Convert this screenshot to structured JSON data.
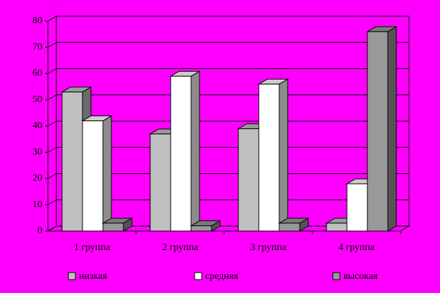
{
  "chart_data": {
    "type": "bar",
    "categories": [
      "1 группа",
      "2 группа",
      "3 группа",
      "4 группа"
    ],
    "series": [
      {
        "name": "низкая",
        "color": "#c0c0c0",
        "values": [
          53,
          37,
          39,
          3
        ]
      },
      {
        "name": "средняя",
        "color": "#ffffff",
        "values": [
          42,
          59,
          56,
          18
        ]
      },
      {
        "name": "высокая",
        "color": "#999999",
        "values": [
          3,
          2,
          3,
          76
        ]
      }
    ],
    "ylim": [
      0,
      80
    ],
    "yticks": [
      0,
      10,
      20,
      30,
      40,
      50,
      60,
      70,
      80
    ],
    "grid": true
  }
}
